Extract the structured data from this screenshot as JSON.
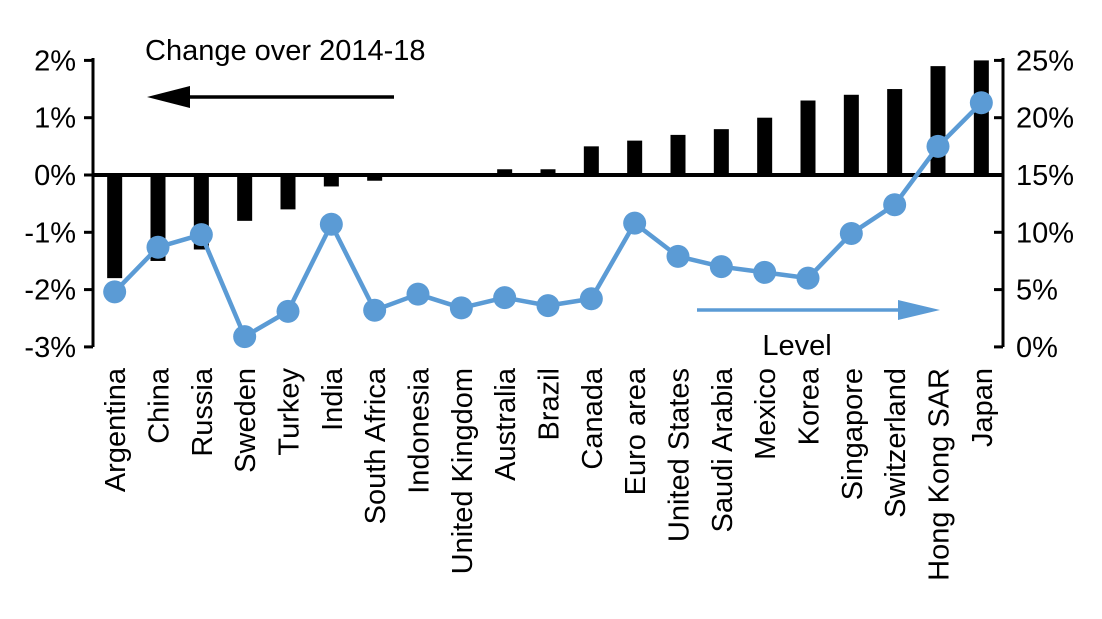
{
  "chart_data": {
    "type": "combo-bar-line",
    "categories": [
      "Argentina",
      "China",
      "Russia",
      "Sweden",
      "Turkey",
      "India",
      "South Africa",
      "Indonesia",
      "United Kingdom",
      "Australia",
      "Brazil",
      "Canada",
      "Euro area",
      "United States",
      "Saudi Arabia",
      "Mexico",
      "Korea",
      "Singapore",
      "Switzerland",
      "Hong Kong SAR",
      "Japan"
    ],
    "series": [
      {
        "name": "Change over 2014-18",
        "type": "bar",
        "axis": "left",
        "color": "#000000",
        "values": [
          -1.8,
          -1.5,
          -1.3,
          -0.8,
          -0.6,
          -0.2,
          -0.1,
          0,
          0,
          0.1,
          0.1,
          0.5,
          0.6,
          0.7,
          0.8,
          1.0,
          1.3,
          1.4,
          1.5,
          1.9,
          2.0
        ]
      },
      {
        "name": "Level",
        "type": "line",
        "axis": "right",
        "color": "#5b9bd5",
        "values": [
          4.8,
          8.7,
          9.8,
          0.9,
          3.1,
          10.7,
          3.2,
          4.6,
          3.4,
          4.3,
          3.6,
          4.2,
          10.8,
          7.9,
          7.0,
          6.5,
          6.0,
          9.9,
          12.4,
          17.5,
          21.3
        ]
      }
    ],
    "left_axis": {
      "min": -3,
      "max": 2,
      "tick_values": [
        2,
        1,
        0,
        -1,
        -2,
        -3
      ],
      "tick_labels": [
        "2%",
        "1%",
        "0%",
        "-1%",
        "-2%",
        "-3%"
      ]
    },
    "right_axis": {
      "min": 0,
      "max": 25,
      "tick_values": [
        25,
        20,
        15,
        10,
        5,
        0
      ],
      "tick_labels": [
        "25%",
        "20%",
        "15%",
        "10%",
        "5%",
        "0%"
      ]
    },
    "annotations": {
      "bar_series_label": "Change over 2014-18",
      "line_series_label": "Level",
      "bar_arrow_direction": "left",
      "line_arrow_direction": "right",
      "bar_arrow_color": "#000000",
      "line_arrow_color": "#5b9bd5"
    },
    "layout_hints": {
      "grid": "off",
      "zero_line": true,
      "x_labels_rotation_deg": -90
    }
  }
}
